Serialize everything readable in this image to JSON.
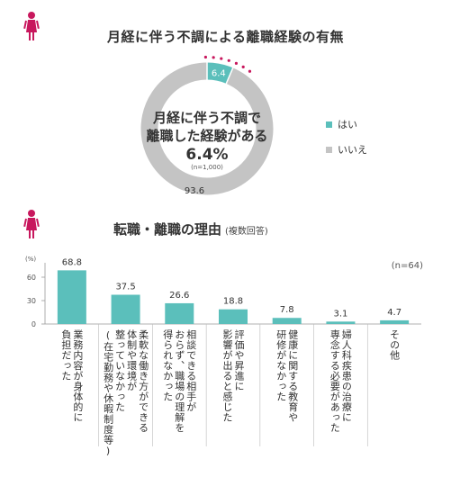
{
  "colors": {
    "teal": "#5bbfbb",
    "gray": "#c4c4c4",
    "accent": "#c8175d",
    "axis": "#999999",
    "text": "#333333"
  },
  "icons": [
    "woman-figure-icon",
    "woman-figure-icon"
  ],
  "chart_data": [
    {
      "type": "pie",
      "style": "donut",
      "title": "月経に伴う不調による離職経験の有無",
      "center_text": [
        "月経に伴う不調で",
        "離職した経験がある"
      ],
      "center_value": "6.4%",
      "sample_note": "(n=1,000)",
      "categories": [
        "はい",
        "いいえ"
      ],
      "values": [
        6.4,
        93.6
      ],
      "value_labels": [
        "6.4",
        "93.6"
      ],
      "colors": [
        "#5bbfbb",
        "#c4c4c4"
      ],
      "legend": "right"
    },
    {
      "type": "bar",
      "title": "転職・離職の理由",
      "subtitle": "(複数回答)",
      "sample_note": "(n=64)",
      "unit_label": "(%)",
      "yticks": [
        "60",
        "30",
        "0"
      ],
      "ylim": [
        0,
        80
      ],
      "categories": [
        [
          "業務内容が身体的に",
          "負担だった"
        ],
        [
          "柔軟な働き方ができる",
          "体制や環境が",
          "整っていなかった",
          "(在宅勤務や休暇制度等)"
        ],
        [
          "相談できる相手が",
          "おらず、職場の理解を",
          "得られなかった"
        ],
        [
          "評価や昇進に",
          "影響が出ると感じた"
        ],
        [
          "健康に関する教育や",
          "研修がなかった"
        ],
        [
          "婦人科疾患の治療に",
          "専念する必要があった"
        ],
        [
          "その他"
        ]
      ],
      "values": [
        68.8,
        37.5,
        26.6,
        18.8,
        7.8,
        3.1,
        4.7
      ],
      "value_labels": [
        "68.8",
        "37.5",
        "26.6",
        "18.8",
        "7.8",
        "3.1",
        "4.7"
      ],
      "color": "#5bbfbb",
      "grid": false
    }
  ]
}
